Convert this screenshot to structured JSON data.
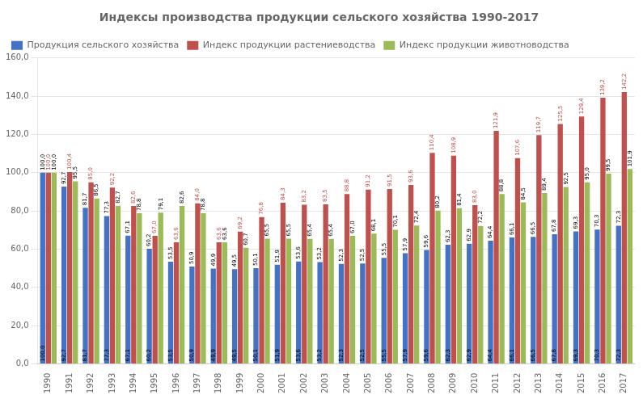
{
  "chart_data": {
    "type": "bar",
    "title": "Индексы производства продукции сельского хозяйства 1990-2017",
    "categories": [
      "1990",
      "1991",
      "1992",
      "1993",
      "1994",
      "1995",
      "1996",
      "1997",
      "1998",
      "1999",
      "2000",
      "2001",
      "2002",
      "2003",
      "2004",
      "2005",
      "2006",
      "2007",
      "2008",
      "2009",
      "2010",
      "2011",
      "2012",
      "2013",
      "2014",
      "2015",
      "2016",
      "2017"
    ],
    "series": [
      {
        "name": "Продукция сельского хозяйства",
        "color": "#4472C4",
        "values": [
          100.0,
          92.7,
          81.7,
          77.3,
          67.1,
          60.2,
          53.5,
          50.9,
          49.9,
          49.5,
          50.1,
          51.9,
          53.6,
          53.2,
          52.3,
          52.5,
          55.5,
          57.9,
          59.6,
          62.3,
          62.9,
          64.4,
          66.1,
          66.5,
          67.8,
          69.3,
          70.3,
          72.3
        ],
        "value_labels": [
          "100,0",
          "92,7",
          "81,7",
          "77,3",
          "67,1",
          "60,2",
          "53,5",
          "50,9",
          "49,9",
          "49,5",
          "50,1",
          "51,9",
          "53,6",
          "53,2",
          "52,3",
          "52,5",
          "55,5",
          "57,9",
          "59,6",
          "62,3",
          "62,9",
          "64,4",
          "66,1",
          "66,5",
          "67,8",
          "69,3",
          "70,3",
          "72,3"
        ]
      },
      {
        "name": "Индекс продукции растениеводства",
        "color": "#C0504D",
        "values": [
          100.0,
          100.4,
          95.0,
          92.2,
          82.6,
          67.0,
          63.6,
          84.0,
          63.6,
          69.2,
          76.8,
          84.3,
          83.2,
          83.5,
          88.8,
          91.2,
          91.5,
          93.6,
          110.4,
          108.9,
          83.0,
          121.9,
          107.6,
          119.7,
          125.5,
          129.4,
          139.2,
          142.2
        ],
        "value_labels": [
          "100,0",
          "100,4",
          "95,0",
          "92,2",
          "82,6",
          "67,0",
          "63,6",
          "84,0",
          "63,6",
          "69,2",
          "76,8",
          "84,3",
          "83,2",
          "83,5",
          "88,8",
          "91,2",
          "91,5",
          "93,6",
          "110,4",
          "108,9",
          "83,0",
          "121,9",
          "107,6",
          "119,7",
          "125,5",
          "129,4",
          "139,2",
          "142,2"
        ]
      },
      {
        "name": "Индекс продукции животноводства",
        "color": "#9BBB59",
        "values": [
          100.0,
          95.5,
          86.5,
          82.7,
          78.8,
          79.1,
          82.6,
          78.8,
          63.6,
          60.7,
          65.5,
          65.5,
          65.4,
          65.4,
          67.0,
          68.1,
          70.1,
          72.4,
          80.2,
          81.4,
          72.2,
          88.8,
          84.5,
          89.4,
          92.5,
          95.0,
          99.5,
          101.9
        ],
        "value_labels": [
          "100,0",
          "95,5",
          "86,5",
          "82,7",
          "78,8",
          "79,1",
          "82,6",
          "78,8",
          "63,6",
          "60,7",
          "65,5",
          "65,5",
          "65,4",
          "65,4",
          "67,0",
          "68,1",
          "70,1",
          "72,4",
          "80,2",
          "81,4",
          "72,2",
          "88,8",
          "84,5",
          "89,4",
          "92,5",
          "95,0",
          "99,5",
          "101,9"
        ]
      }
    ],
    "ylim": [
      0,
      160
    ],
    "yticks": [
      {
        "value": 0,
        "label": "0,0"
      },
      {
        "value": 20,
        "label": "20,0"
      },
      {
        "value": 40,
        "label": "40,0"
      },
      {
        "value": 60,
        "label": "60,0"
      },
      {
        "value": 80,
        "label": "80,0"
      },
      {
        "value": 100,
        "label": "100,0"
      },
      {
        "value": 120,
        "label": "120,0"
      },
      {
        "value": 140,
        "label": "140,0"
      },
      {
        "value": 160,
        "label": "160,0"
      }
    ],
    "grid": true,
    "legend": "top",
    "data_labels": true
  }
}
